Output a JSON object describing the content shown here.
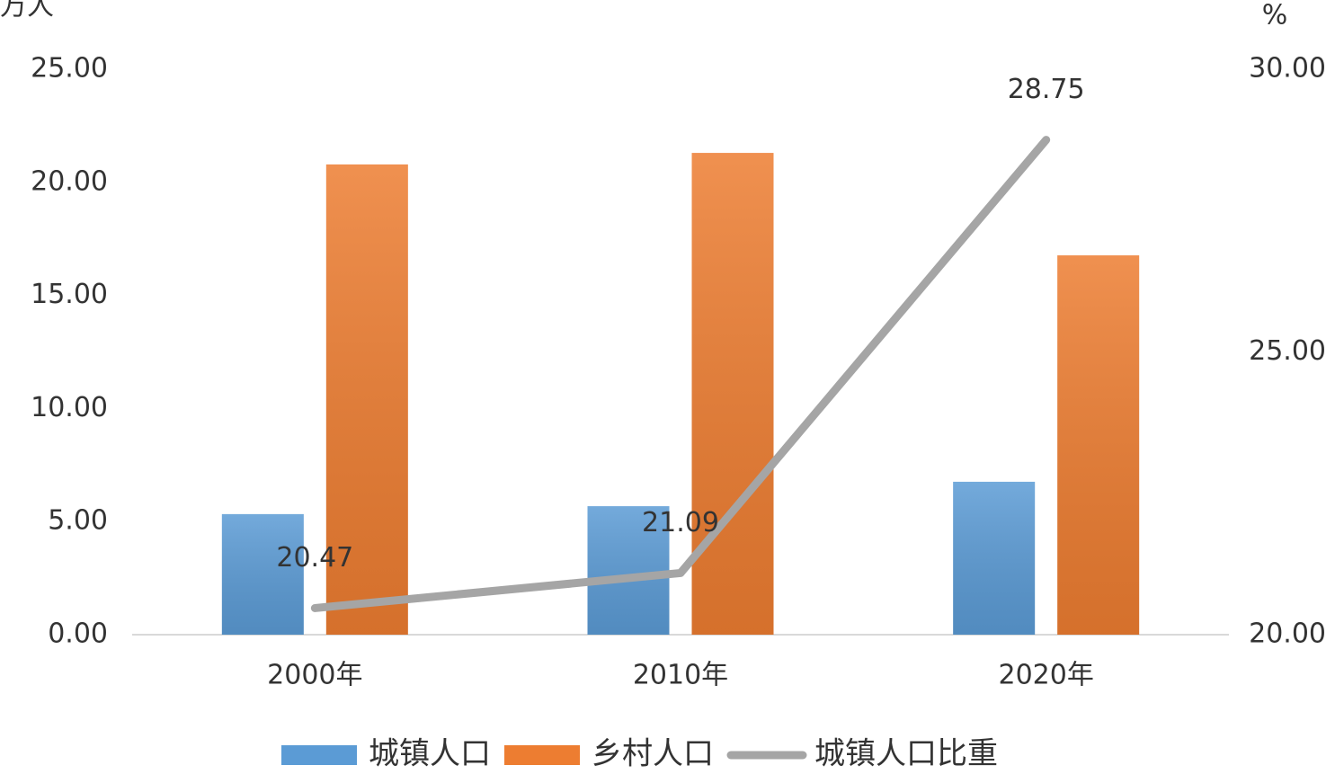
{
  "chart_data": {
    "type": "bar",
    "ylabel": "万人",
    "y2label": "%",
    "categories": [
      "2000年",
      "2010年",
      "2020年"
    ],
    "series": [
      {
        "name": "城镇人口",
        "color": "#5b9bd5",
        "values": [
          5.33,
          5.68,
          6.76
        ]
      },
      {
        "name": "乡村人口",
        "color": "#ed7d31",
        "values": [
          20.79,
          21.3,
          16.77
        ]
      },
      {
        "name": "城镇人口比重",
        "color": "#a5a5a5",
        "type": "line",
        "axis": "y2",
        "values": [
          20.47,
          21.09,
          28.75
        ]
      }
    ],
    "ylim": [
      0,
      25
    ],
    "yticks": [
      {
        "value": 0,
        "label": "0.00"
      },
      {
        "value": 5,
        "label": "5.00"
      },
      {
        "value": 10,
        "label": "10.00"
      },
      {
        "value": 15,
        "label": "15.00"
      },
      {
        "value": 20,
        "label": "20.00"
      },
      {
        "value": 25,
        "label": "25.00"
      }
    ],
    "y2lim": [
      20,
      30
    ],
    "y2ticks": [
      {
        "value": 20,
        "label": "20.00"
      },
      {
        "value": 25,
        "label": "25.00"
      },
      {
        "value": 30,
        "label": "30.00"
      }
    ],
    "legend": "bottom"
  }
}
